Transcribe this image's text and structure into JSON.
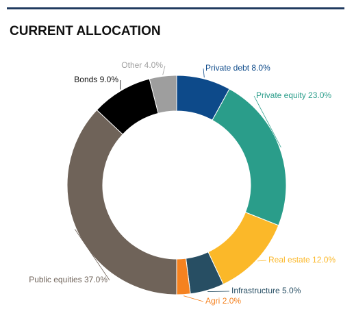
{
  "chart_data": {
    "type": "donut",
    "title": "CURRENT ALLOCATION",
    "categories": [
      "Private debt",
      "Private equity",
      "Real estate",
      "Infrastructure",
      "Agri",
      "Public equities",
      "Bonds",
      "Other"
    ],
    "values": [
      8,
      23,
      12,
      5,
      2,
      37,
      9,
      4
    ],
    "value_labels": [
      "8.0%",
      "23.0%",
      "12.0%",
      "5.0%",
      "2.0%",
      "37.0%",
      "9.0%",
      "4.0%"
    ],
    "colors": [
      "#0d4a8a",
      "#2a9d8a",
      "#fbb829",
      "#274e63",
      "#f58220",
      "#6f6359",
      "#000000",
      "#9e9e9e"
    ]
  }
}
